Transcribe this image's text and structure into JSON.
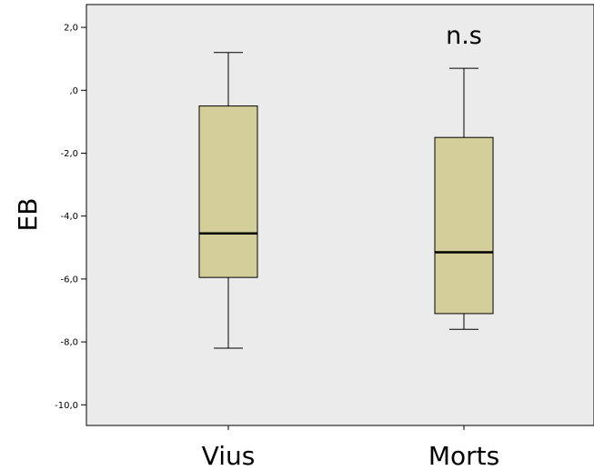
{
  "chart_data": {
    "type": "boxplot",
    "ylabel": "EB",
    "xlabel": "",
    "ylim": [
      -10.6,
      2.6
    ],
    "yticks": [
      2.0,
      0.0,
      -2.0,
      -4.0,
      -6.0,
      -8.0,
      -10.0
    ],
    "ytick_labels": [
      "2,0",
      ",0",
      "-2,0",
      "-4,0",
      "-6,0",
      "-8,0",
      "-10,0"
    ],
    "categories": [
      "Vius",
      "Morts"
    ],
    "boxes": [
      {
        "category": "Vius",
        "whisker_low": -8.2,
        "q1": -5.95,
        "median": -4.55,
        "q3": -0.5,
        "whisker_high": 1.2
      },
      {
        "category": "Morts",
        "whisker_low": -7.6,
        "q1": -7.1,
        "median": -5.15,
        "q3": -1.5,
        "whisker_high": 0.7
      }
    ],
    "annotation": "n.s",
    "colors": {
      "box_fill": "#d4cf9a",
      "plot_background": "#ebebeb"
    },
    "grid": false,
    "legend": "none"
  }
}
